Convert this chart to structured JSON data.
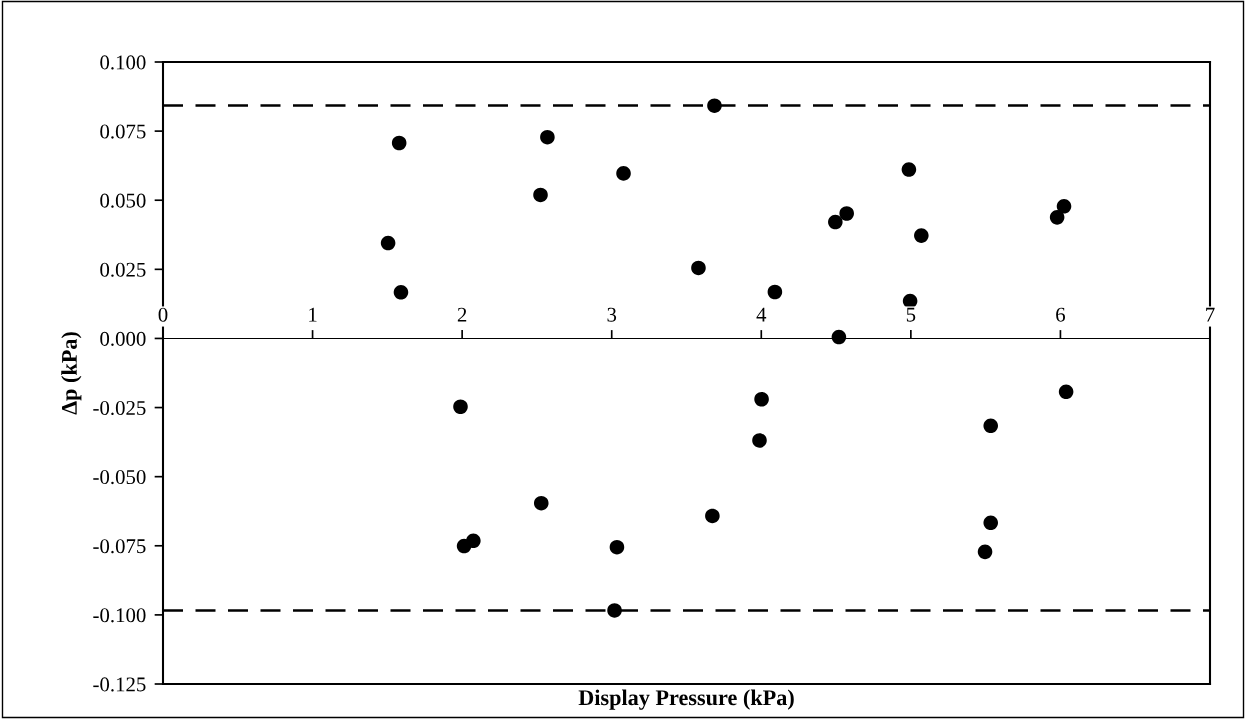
{
  "chart_data": {
    "type": "scatter",
    "xlabel": "Display Pressure (kPa)",
    "ylabel": "Δp (kPa)",
    "x": [
      1.505,
      1.579,
      1.591,
      2.524,
      2.57,
      3.079,
      3.58,
      3.687,
      4.495,
      4.571,
      4.987,
      5.07,
      5.978,
      6.024,
      4.091,
      4.995,
      4.519,
      1.989,
      2.013,
      2.075,
      2.529,
      3.035,
      3.019,
      3.673,
      4.002,
      3.988,
      5.534,
      6.038,
      5.534,
      5.496
    ],
    "series": [
      {
        "color": "#000000",
        "values": [
          0.0345,
          0.0707,
          0.0167,
          0.0519,
          0.0728,
          0.0597,
          0.0255,
          0.0842,
          0.0421,
          0.0452,
          0.0611,
          0.0372,
          0.0438,
          0.0478,
          0.0168,
          0.0135,
          0.0005,
          -0.0247,
          -0.0751,
          -0.0732,
          -0.0596,
          -0.0755,
          -0.0984,
          -0.0642,
          -0.022,
          -0.0369,
          -0.0316,
          -0.0193,
          -0.0667,
          -0.0772
        ]
      }
    ],
    "marker": "circle",
    "grid": false,
    "legend": false,
    "xlim": [
      0,
      7
    ],
    "xticks": [
      0,
      1,
      2,
      3,
      4,
      5,
      6,
      7
    ],
    "ylim": [
      -0.125,
      0.1
    ],
    "yticks": [
      {
        "value": -0.125,
        "label": "-0.125"
      },
      {
        "value": -0.1,
        "label": "-0.100"
      },
      {
        "value": -0.075,
        "label": "-0.075"
      },
      {
        "value": -0.05,
        "label": "-0.050"
      },
      {
        "value": -0.025,
        "label": "-0.025"
      },
      {
        "value": 0,
        "label": "0.000"
      },
      {
        "value": 0.025,
        "label": "0.025"
      },
      {
        "value": 0.05,
        "label": "0.050"
      },
      {
        "value": 0.075,
        "label": "0.075"
      },
      {
        "value": 0.1,
        "label": "0.100"
      }
    ],
    "ref_lines": [
      {
        "axis": "y",
        "value": 0.0843,
        "color": "#000000",
        "line_style": "dashed"
      },
      {
        "axis": "y",
        "value": -0.0984,
        "color": "#000000",
        "line_style": "dashed"
      }
    ]
  }
}
